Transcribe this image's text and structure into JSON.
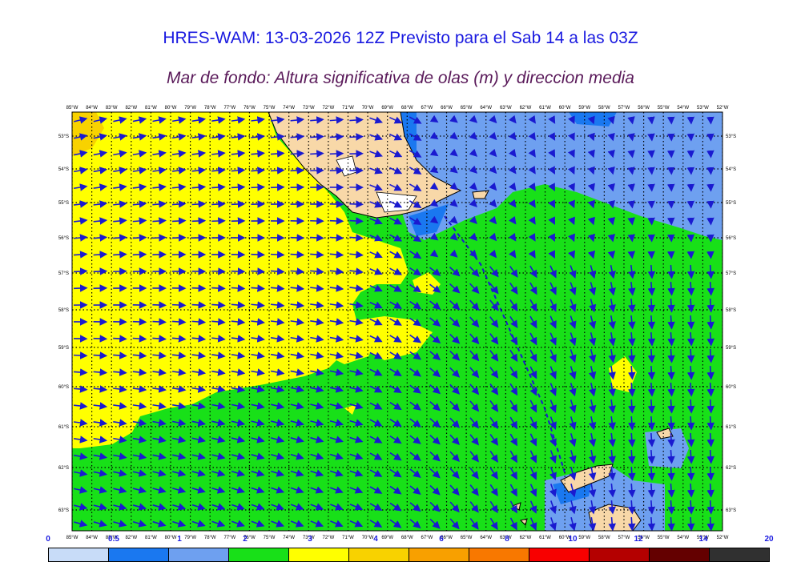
{
  "title": "HRES-WAM: 13-03-2026 12Z Previsto para el Sab 14 a las 03Z",
  "subtitle": "Mar de fondo: Altura significativa de olas (m) y direccion media",
  "map": {
    "lon_labels": [
      "85°W",
      "84°W",
      "83°W",
      "82°W",
      "81°W",
      "80°W",
      "79°W",
      "78°W",
      "77°W",
      "76°W",
      "75°W",
      "74°W",
      "73°W",
      "72°W",
      "71°W",
      "70°W",
      "69°W",
      "68°W",
      "67°W",
      "66°W",
      "65°W",
      "64°W",
      "63°W",
      "62°W",
      "61°W",
      "60°W",
      "59°W",
      "58°W",
      "57°W",
      "56°W",
      "55°W",
      "54°W",
      "53°W",
      "52°W"
    ],
    "lat_labels": [
      "53°S",
      "54°S",
      "55°S",
      "56°S",
      "57°S",
      "58°S",
      "59°S",
      "60°S",
      "61°S",
      "62°S",
      "63°S"
    ]
  },
  "legend": {
    "labels": [
      "0",
      "0.5",
      "1",
      "2",
      "3",
      "4",
      "6",
      "8",
      "10",
      "12",
      "14",
      "20"
    ],
    "colors": [
      "#c8dcf8",
      "#1a78f0",
      "#6ea0f0",
      "#18e018",
      "#ffff00",
      "#f8d200",
      "#f8a000",
      "#f87800",
      "#f80000",
      "#b40000",
      "#640000",
      "#303030"
    ]
  },
  "colors": {
    "land": "#f8d8a8",
    "arrow": "#1a1ad0",
    "title": "#1a1ae0",
    "subtitle": "#5a1a5a"
  }
}
